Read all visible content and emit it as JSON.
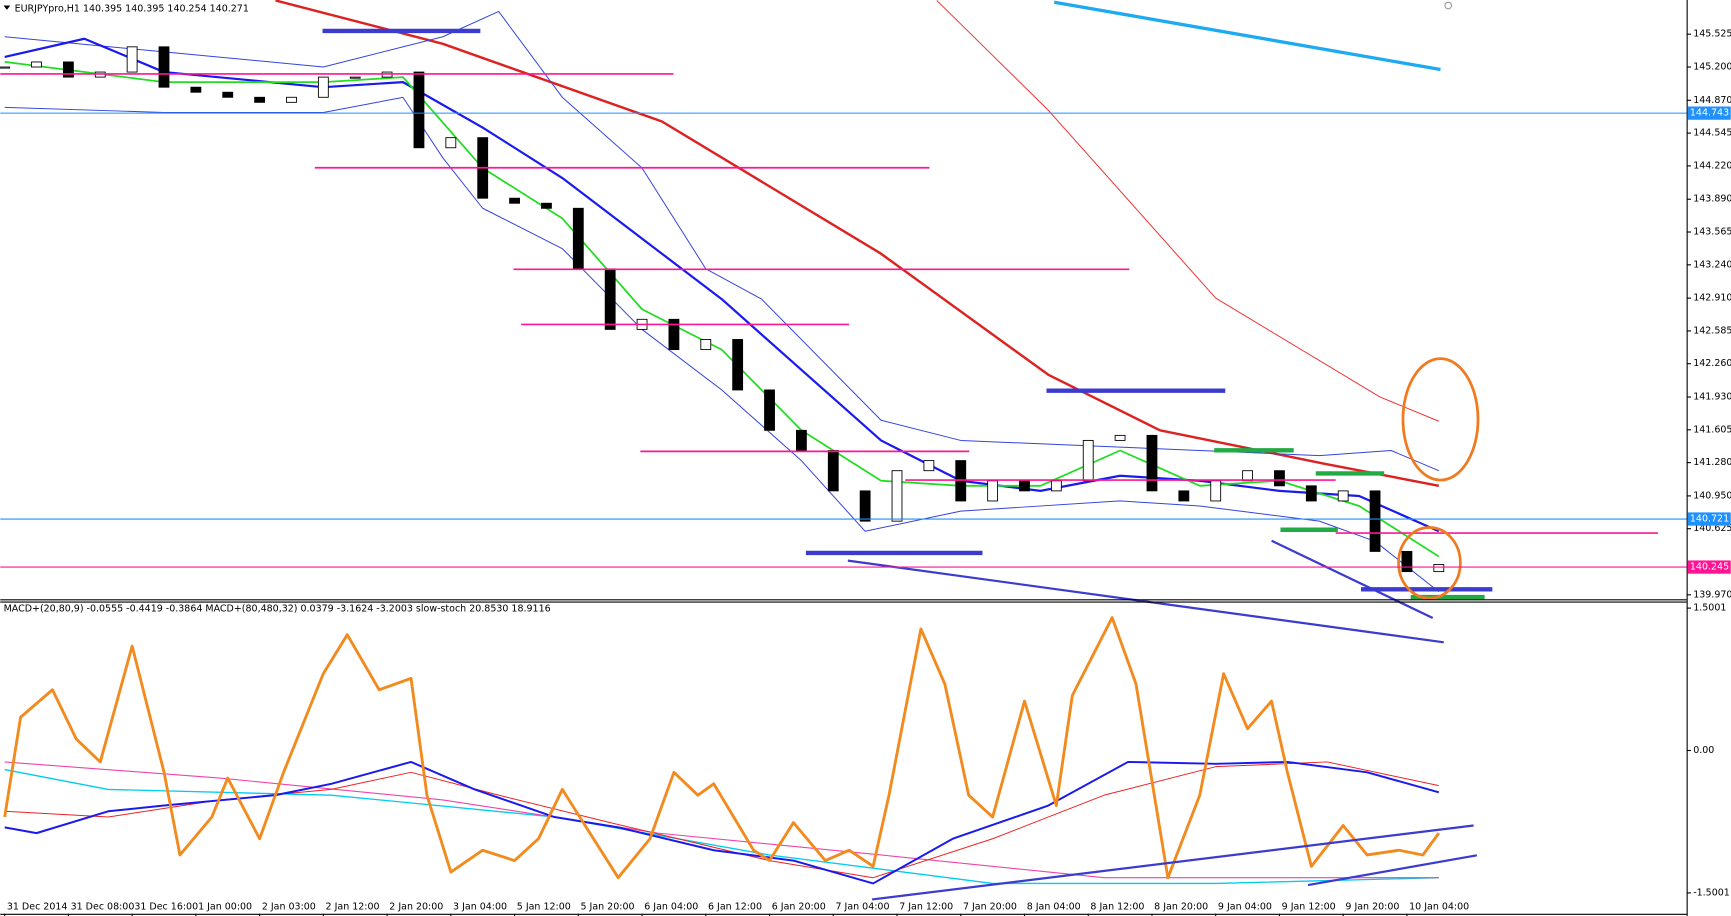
{
  "chart_data": [
    {
      "type": "candlestick",
      "title": "EURJPYpro,H1 140.395 140.395 140.254 140.271",
      "x": [
        0,
        4,
        8,
        12,
        16,
        20,
        24,
        28,
        32,
        36,
        40,
        44,
        48,
        52,
        56,
        60,
        64,
        68,
        72,
        76,
        80,
        84,
        88,
        92,
        96,
        100,
        104,
        108,
        112,
        116,
        120,
        124,
        128,
        132,
        136,
        140,
        144,
        148,
        152,
        156,
        160,
        164,
        168,
        172,
        176,
        180
      ],
      "close": [
        145.2,
        145.25,
        145.1,
        145.15,
        145.4,
        145.0,
        144.95,
        144.9,
        144.85,
        144.9,
        145.1,
        145.1,
        145.15,
        144.4,
        144.5,
        143.9,
        143.85,
        143.8,
        143.2,
        142.6,
        142.7,
        142.4,
        142.5,
        142.0,
        141.6,
        141.4,
        141.0,
        140.7,
        141.2,
        141.3,
        140.9,
        141.1,
        141.0,
        141.1,
        141.5,
        141.55,
        141.0,
        140.9,
        141.1,
        141.2,
        141.05,
        140.9,
        141.0,
        140.4,
        140.2,
        140.27
      ],
      "lines": [
        {
          "color": "#dd2222",
          "width": 2.2,
          "x": [
            34,
            55,
            82.5,
            110,
            131,
            145,
            165.6,
            180
          ],
          "values": [
            145.86,
            145.43,
            144.66,
            143.35,
            142.15,
            141.6,
            141.27,
            141.05
          ]
        },
        {
          "color": "#ee3333",
          "width": 0.9,
          "x": [
            117,
            131,
            152,
            172.6,
            180
          ],
          "values": [
            145.86,
            144.77,
            142.91,
            141.93,
            141.69
          ]
        },
        {
          "color": "#3344dd",
          "width": 0.9,
          "x": [
            0,
            20,
            40,
            55,
            62,
            70,
            80,
            88,
            95,
            110,
            120,
            150,
            165,
            174,
            180
          ],
          "values": [
            145.5,
            145.35,
            145.2,
            145.5,
            145.75,
            144.9,
            144.2,
            143.2,
            142.9,
            141.7,
            141.5,
            141.4,
            141.35,
            141.4,
            141.2
          ]
        },
        {
          "color": "#3344dd",
          "width": 0.9,
          "x": [
            0,
            20,
            40,
            50,
            55,
            60,
            70,
            80,
            90,
            100,
            108,
            120,
            140,
            150,
            165,
            172,
            180
          ],
          "values": [
            144.8,
            144.75,
            144.75,
            144.9,
            144.3,
            143.8,
            143.4,
            142.6,
            142.0,
            141.3,
            140.6,
            140.8,
            140.9,
            140.85,
            140.7,
            140.5,
            140.0
          ]
        },
        {
          "color": "#1a1aee",
          "width": 2,
          "x": [
            0,
            10,
            20,
            40,
            50,
            60,
            70,
            80,
            90,
            100,
            110,
            120,
            130,
            140,
            150,
            160,
            170,
            180
          ],
          "values": [
            145.3,
            145.48,
            145.15,
            145.0,
            145.05,
            144.6,
            144.1,
            143.5,
            142.9,
            142.2,
            141.5,
            141.1,
            141.0,
            141.15,
            141.1,
            141.0,
            140.95,
            140.6
          ]
        },
        {
          "color": "#22dd22",
          "width": 1.6,
          "x": [
            0,
            20,
            40,
            50,
            60,
            70,
            80,
            90,
            100,
            110,
            120,
            130,
            140,
            150,
            160,
            170,
            180
          ],
          "values": [
            145.25,
            145.05,
            145.05,
            145.1,
            144.2,
            143.7,
            142.8,
            142.4,
            141.6,
            141.1,
            141.05,
            141.05,
            141.4,
            141.05,
            141.1,
            140.85,
            140.35
          ]
        }
      ],
      "price_tags": [
        144.743,
        140.721,
        140.245
      ],
      "price_tag_colors": [
        "#1e90ff",
        "#1e90ff",
        "#ff1493"
      ],
      "ylim": [
        139.926,
        145.864
      ],
      "yticks": [
        {
          "value": 145.525,
          "label": "145.525"
        },
        {
          "value": 145.2,
          "label": "145.200"
        },
        {
          "value": 144.87,
          "label": "144.870"
        },
        {
          "value": 144.545,
          "label": "144.545"
        },
        {
          "value": 144.22,
          "label": "144.220"
        },
        {
          "value": 143.89,
          "label": "143.890"
        },
        {
          "value": 143.565,
          "label": "143.565"
        },
        {
          "value": 143.24,
          "label": "143.240"
        },
        {
          "value": 142.91,
          "label": "142.910"
        },
        {
          "value": 142.585,
          "label": "142.585"
        },
        {
          "value": 142.26,
          "label": "142.260"
        },
        {
          "value": 141.93,
          "label": "141.930"
        },
        {
          "value": 141.605,
          "label": "141.605"
        },
        {
          "value": 141.28,
          "label": "141.280"
        },
        {
          "value": 140.95,
          "label": "140.950"
        },
        {
          "value": 140.625,
          "label": "140.625"
        },
        {
          "value": 139.97,
          "label": "139.970"
        }
      ],
      "xlim": [
        -0.55,
        211.1
      ],
      "xticks": [
        {
          "value": 0,
          "label": "31 Dec 2014"
        },
        {
          "value": 8,
          "label": "31 Dec 08:00"
        },
        {
          "value": 16,
          "label": "31 Dec 16:00"
        },
        {
          "value": 24,
          "label": "1 Jan 00:00"
        },
        {
          "value": 32,
          "label": "2 Jan 03:00"
        },
        {
          "value": 40,
          "label": "2 Jan 12:00"
        },
        {
          "value": 48,
          "label": "2 Jan 20:00"
        },
        {
          "value": 56,
          "label": "3 Jan 04:00"
        },
        {
          "value": 64,
          "label": "5 Jan 12:00"
        },
        {
          "value": 72,
          "label": "5 Jan 20:00"
        },
        {
          "value": 80,
          "label": "6 Jan 04:00"
        },
        {
          "value": 88,
          "label": "6 Jan 12:00"
        },
        {
          "value": 96,
          "label": "6 Jan 20:00"
        },
        {
          "value": 104,
          "label": "7 Jan 04:00"
        },
        {
          "value": 112,
          "label": "7 Jan 12:00"
        },
        {
          "value": 120,
          "label": "7 Jan 20:00"
        },
        {
          "value": 128,
          "label": "8 Jan 04:00"
        },
        {
          "value": 136,
          "label": "8 Jan 12:00"
        },
        {
          "value": 144,
          "label": "8 Jan 20:00"
        },
        {
          "value": 152,
          "label": "9 Jan 04:00"
        },
        {
          "value": 160,
          "label": "9 Jan 12:00"
        },
        {
          "value": 168,
          "label": "9 Jan 20:00"
        },
        {
          "value": 176,
          "label": "10 Jan 04:00"
        }
      ]
    },
    {
      "type": "line",
      "title": "MACD+(20,80,9) -0.0555 -0.4419 -0.3864  MACD+(80,480,32) 0.0379 -3.1624 -3.2003  slow-stoch 20.8530 18.9116",
      "ylim": [
        -1.72,
        1.57
      ],
      "yticks": [
        1.5001,
        {
          "value": 0,
          "label": "0.00"
        },
        -1.5001
      ],
      "series": [
        {
          "color": "#00ccee",
          "width": 1.2,
          "x": [
            0,
            13,
            41,
            69,
            96,
            124,
            152,
            180
          ],
          "values": [
            -0.2,
            -0.41,
            -0.47,
            -0.7,
            -1.1,
            -1.4,
            -1.4,
            -1.34
          ]
        },
        {
          "color": "#ee44aa",
          "width": 1,
          "x": [
            0,
            27,
            55,
            82,
            110,
            138,
            180
          ],
          "values": [
            -0.12,
            -0.29,
            -0.52,
            -0.87,
            -1.1,
            -1.34,
            -1.34
          ]
        },
        {
          "color": "#ee2222",
          "width": 0.9,
          "x": [
            0,
            13,
            27,
            41,
            51,
            62,
            76,
            96,
            109,
            124,
            138,
            152,
            166,
            180
          ],
          "values": [
            -0.64,
            -0.7,
            -0.52,
            -0.41,
            -0.23,
            -0.47,
            -0.76,
            -1.16,
            -1.34,
            -0.93,
            -0.47,
            -0.17,
            -0.12,
            -0.37
          ]
        },
        {
          "color": "#1a1aee",
          "width": 1.8,
          "x": [
            0,
            4,
            13,
            20,
            34,
            41,
            51,
            59,
            69,
            77,
            89,
            99,
            109,
            119,
            131,
            141,
            152,
            161,
            171,
            180
          ],
          "values": [
            -0.81,
            -0.87,
            -0.64,
            -0.58,
            -0.47,
            -0.35,
            -0.12,
            -0.41,
            -0.7,
            -0.81,
            -1.05,
            -1.16,
            -1.4,
            -0.93,
            -0.58,
            -0.12,
            -0.14,
            -0.12,
            -0.23,
            -0.44
          ]
        },
        {
          "color": "#f28a1e",
          "width": 2.6,
          "x": [
            0,
            2,
            6,
            9,
            12,
            16,
            20,
            22,
            26,
            28,
            32,
            35,
            40,
            43,
            47,
            51,
            53,
            56,
            60,
            64,
            67,
            70,
            73,
            77,
            81,
            84,
            87,
            89,
            94,
            96,
            99,
            103,
            106,
            109,
            111,
            115,
            118,
            121,
            124,
            128,
            132,
            134,
            139,
            142,
            146,
            150,
            153,
            156,
            159,
            161,
            164,
            168,
            171,
            175,
            178,
            180
          ],
          "values": [
            -0.7,
            0.35,
            0.64,
            0.12,
            -0.12,
            1.1,
            -0.23,
            -1.1,
            -0.7,
            -0.29,
            -0.93,
            -0.23,
            0.81,
            1.22,
            0.64,
            0.76,
            -0.47,
            -1.28,
            -1.05,
            -1.16,
            -0.93,
            -0.41,
            -0.81,
            -1.34,
            -0.93,
            -0.23,
            -0.47,
            -0.35,
            -1.05,
            -1.16,
            -0.76,
            -1.16,
            -1.05,
            -1.22,
            -0.47,
            1.28,
            0.7,
            -0.47,
            -0.7,
            0.52,
            -0.58,
            0.58,
            1.4,
            0.7,
            -1.34,
            -0.47,
            0.81,
            0.23,
            0.52,
            -0.23,
            -1.22,
            -0.79,
            -1.1,
            -1.05,
            -1.1,
            -0.87
          ]
        }
      ]
    }
  ]
}
